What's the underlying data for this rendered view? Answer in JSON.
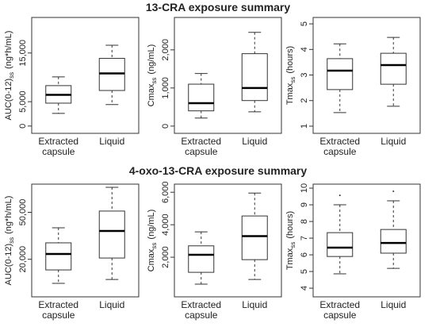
{
  "chart_data": [
    {
      "type": "box",
      "title": "13-CRA exposure summary",
      "ylabel": {
        "text": "AUC(0-12)",
        "sub": "ss",
        "unit": "(ng*h/mL)"
      },
      "categories": [
        "Extracted capsule",
        "Liquid"
      ],
      "stats": [
        {
          "min": 2600,
          "q1": 4700,
          "median": 6400,
          "q3": 8300,
          "max": 10100
        },
        {
          "min": 4400,
          "q1": 7300,
          "median": 10800,
          "q3": 13900,
          "max": 16600
        }
      ],
      "ylim": [
        -1500,
        22300
      ],
      "yticks": [
        0,
        {
          "value": 5000,
          "label": "5,000"
        },
        {
          "value": 15000,
          "label": "15,000"
        }
      ]
    },
    {
      "type": "box",
      "ylabel": {
        "text": "Cmax",
        "sub": "ss",
        "unit": "(ng/mL)"
      },
      "categories": [
        "Extracted capsule",
        "Liquid"
      ],
      "stats": [
        {
          "min": 210,
          "q1": 400,
          "median": 600,
          "q3": 1100,
          "max": 1380
        },
        {
          "min": 375,
          "q1": 670,
          "median": 1000,
          "q3": 1900,
          "max": 2460
        }
      ],
      "ylim": [
        -190,
        2850
      ],
      "yticks": [
        0,
        {
          "value": 1000,
          "label": "1,000"
        },
        {
          "value": 2000,
          "label": "2,000"
        }
      ]
    },
    {
      "type": "box",
      "ylabel": {
        "text": "Tmax",
        "sub": "ss",
        "unit": "(hours)"
      },
      "categories": [
        "Extracted capsule",
        "Liquid"
      ],
      "stats": [
        {
          "min": 1.53,
          "q1": 2.43,
          "median": 3.17,
          "q3": 3.64,
          "max": 4.22
        },
        {
          "min": 1.78,
          "q1": 2.64,
          "median": 3.39,
          "q3": 3.85,
          "max": 4.47
        }
      ],
      "ylim": [
        0.72,
        5.25
      ],
      "yticks": [
        1,
        2,
        3,
        4,
        5
      ]
    },
    {
      "type": "box",
      "title": "4-oxo-13-CRA exposure summary",
      "ylabel": {
        "text": "AUC(0-12)",
        "sub": "ss",
        "unit": "(ng*h/mL)"
      },
      "categories": [
        "Extracted capsule",
        "Liquid"
      ],
      "stats": [
        {
          "min": 4600,
          "q1": 13200,
          "median": 23400,
          "q3": 30500,
          "max": 40100
        },
        {
          "min": 7100,
          "q1": 20800,
          "median": 38100,
          "q3": 50800,
          "max": 66000
        }
      ],
      "ylim": [
        -4000,
        68000
      ],
      "yticks": [
        {
          "value": 20000,
          "label": "20,000"
        },
        {
          "value": 50000,
          "label": "50,000"
        }
      ]
    },
    {
      "type": "box",
      "ylabel": {
        "text": "Cmax",
        "sub": "ss",
        "unit": "(ng/mL)"
      },
      "categories": [
        "Extracted capsule",
        "Liquid"
      ],
      "stats": [
        {
          "min": 340,
          "q1": 1070,
          "median": 2150,
          "q3": 2700,
          "max": 3560
        },
        {
          "min": 630,
          "q1": 1850,
          "median": 3300,
          "q3": 4540,
          "max": 5950
        }
      ],
      "ylim": [
        -440,
        6500
      ],
      "yticks": [
        {
          "value": 2000,
          "label": "2,000"
        },
        {
          "value": 4000,
          "label": "4,000"
        },
        {
          "value": 6000,
          "label": "6,000"
        }
      ]
    },
    {
      "type": "box",
      "ylabel": {
        "text": "Tmax",
        "sub": "ss",
        "unit": "(hours)"
      },
      "categories": [
        "Extracted capsule",
        "Liquid"
      ],
      "stats": [
        {
          "min": 4.86,
          "q1": 5.9,
          "median": 6.43,
          "q3": 7.33,
          "max": 9.0,
          "outliers": [
            9.57
          ]
        },
        {
          "min": 5.19,
          "q1": 6.1,
          "median": 6.71,
          "q3": 7.52,
          "max": 9.24,
          "outliers": [
            9.81
          ]
        }
      ],
      "ylim": [
        3.48,
        10.24
      ],
      "yticks": [
        4,
        5,
        6,
        7,
        8,
        9,
        10
      ]
    }
  ]
}
